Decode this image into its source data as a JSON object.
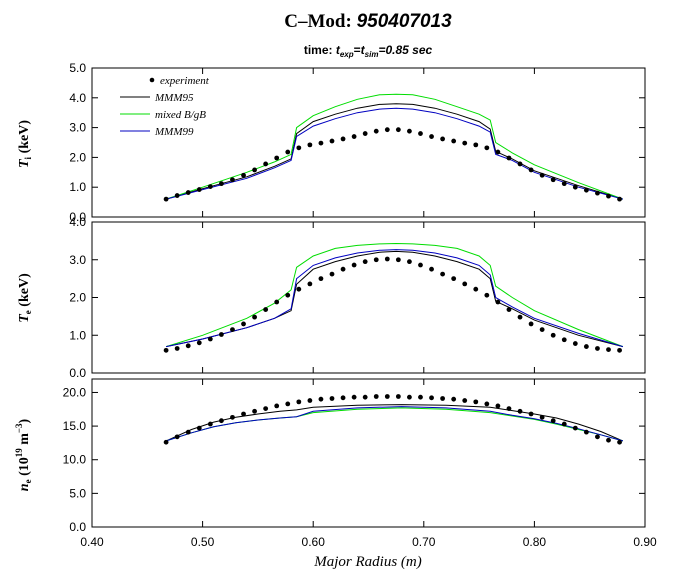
{
  "header": {
    "title_prefix": "C–Mod: ",
    "title_shot": "950407013",
    "subtitle_time": "time: ",
    "subtitle_t1": "t",
    "subtitle_sub1": "exp",
    "subtitle_eq1": "=",
    "subtitle_t2": "t",
    "subtitle_sub2": "sim",
    "subtitle_value": "=0.85 sec"
  },
  "chart_data": [
    {
      "type": "line",
      "panel": "ion-temperature",
      "ylabel_main": "T",
      "ylabel_sub": "i",
      "ylabel_unit": " (keV)",
      "ylim": [
        0,
        5
      ],
      "yticks": [
        "0.0",
        "1.0",
        "2.0",
        "3.0",
        "4.0",
        "5.0"
      ],
      "xlim": [
        0.4,
        0.9
      ],
      "legend": [
        "experiment",
        "MMM95",
        "mixed B/gB",
        "MMM99"
      ],
      "series": [
        {
          "name": "MMM95",
          "color": "#000000",
          "x": [
            0.467,
            0.5,
            0.54,
            0.565,
            0.58,
            0.585,
            0.6,
            0.62,
            0.64,
            0.66,
            0.675,
            0.69,
            0.71,
            0.73,
            0.75,
            0.76,
            0.765,
            0.78,
            0.8,
            0.84,
            0.88
          ],
          "values": [
            0.6,
            0.95,
            1.35,
            1.7,
            1.95,
            2.8,
            3.2,
            3.45,
            3.65,
            3.78,
            3.8,
            3.78,
            3.65,
            3.45,
            3.2,
            2.95,
            2.2,
            1.95,
            1.55,
            1.05,
            0.6
          ]
        },
        {
          "name": "mixed B/gB",
          "color": "#00dd00",
          "x": [
            0.467,
            0.5,
            0.54,
            0.565,
            0.58,
            0.585,
            0.6,
            0.62,
            0.64,
            0.66,
            0.675,
            0.69,
            0.71,
            0.73,
            0.75,
            0.76,
            0.765,
            0.78,
            0.8,
            0.84,
            0.88
          ],
          "values": [
            0.6,
            1.0,
            1.5,
            1.85,
            2.1,
            3.0,
            3.4,
            3.7,
            3.95,
            4.1,
            4.12,
            4.1,
            3.95,
            3.7,
            3.45,
            3.25,
            2.5,
            2.15,
            1.75,
            1.15,
            0.6
          ]
        },
        {
          "name": "MMM99",
          "color": "#0000c0",
          "x": [
            0.467,
            0.5,
            0.54,
            0.565,
            0.58,
            0.585,
            0.6,
            0.62,
            0.64,
            0.66,
            0.675,
            0.69,
            0.71,
            0.73,
            0.75,
            0.76,
            0.765,
            0.78,
            0.8,
            0.84,
            0.88
          ],
          "values": [
            0.6,
            0.92,
            1.3,
            1.65,
            1.9,
            2.7,
            3.05,
            3.3,
            3.5,
            3.62,
            3.65,
            3.62,
            3.5,
            3.3,
            3.05,
            2.85,
            2.1,
            1.9,
            1.5,
            1.0,
            0.6
          ]
        },
        {
          "name": "experiment",
          "color": "#000000",
          "x": [
            0.467,
            0.477,
            0.487,
            0.497,
            0.507,
            0.517,
            0.527,
            0.537,
            0.547,
            0.557,
            0.567,
            0.577,
            0.587,
            0.597,
            0.607,
            0.617,
            0.627,
            0.637,
            0.647,
            0.657,
            0.667,
            0.677,
            0.687,
            0.697,
            0.707,
            0.717,
            0.727,
            0.737,
            0.747,
            0.757,
            0.767,
            0.777,
            0.787,
            0.797,
            0.807,
            0.817,
            0.827,
            0.837,
            0.847,
            0.857,
            0.867,
            0.877
          ],
          "values": [
            0.6,
            0.72,
            0.82,
            0.92,
            1.02,
            1.12,
            1.25,
            1.4,
            1.58,
            1.78,
            1.98,
            2.18,
            2.32,
            2.42,
            2.48,
            2.55,
            2.62,
            2.7,
            2.8,
            2.88,
            2.93,
            2.93,
            2.88,
            2.8,
            2.7,
            2.62,
            2.55,
            2.48,
            2.42,
            2.32,
            2.18,
            1.98,
            1.78,
            1.58,
            1.4,
            1.25,
            1.12,
            1.0,
            0.9,
            0.8,
            0.7,
            0.6
          ]
        }
      ]
    },
    {
      "type": "line",
      "panel": "electron-temperature",
      "ylabel_main": "T",
      "ylabel_sub": "e",
      "ylabel_unit": " (keV)",
      "ylim": [
        0,
        4
      ],
      "yticks": [
        "0.0",
        "1.0",
        "2.0",
        "3.0",
        "4.0"
      ],
      "xlim": [
        0.4,
        0.9
      ],
      "series": [
        {
          "name": "MMM95",
          "color": "#000000",
          "x": [
            0.467,
            0.5,
            0.54,
            0.565,
            0.58,
            0.585,
            0.6,
            0.62,
            0.64,
            0.66,
            0.675,
            0.69,
            0.71,
            0.73,
            0.75,
            0.76,
            0.765,
            0.78,
            0.8,
            0.84,
            0.88
          ],
          "values": [
            0.7,
            0.9,
            1.2,
            1.45,
            1.65,
            2.35,
            2.75,
            2.95,
            3.1,
            3.2,
            3.22,
            3.2,
            3.1,
            2.95,
            2.75,
            2.5,
            1.9,
            1.7,
            1.4,
            1.0,
            0.7
          ]
        },
        {
          "name": "mixed B/gB",
          "color": "#00dd00",
          "x": [
            0.467,
            0.5,
            0.54,
            0.565,
            0.58,
            0.585,
            0.6,
            0.62,
            0.64,
            0.66,
            0.675,
            0.69,
            0.71,
            0.73,
            0.75,
            0.76,
            0.765,
            0.78,
            0.8,
            0.84,
            0.88
          ],
          "values": [
            0.7,
            1.0,
            1.45,
            1.85,
            2.2,
            2.8,
            3.1,
            3.3,
            3.38,
            3.42,
            3.43,
            3.42,
            3.38,
            3.3,
            3.1,
            2.85,
            2.3,
            2.0,
            1.65,
            1.15,
            0.7
          ]
        },
        {
          "name": "MMM99",
          "color": "#0000c0",
          "x": [
            0.467,
            0.5,
            0.54,
            0.565,
            0.58,
            0.585,
            0.6,
            0.62,
            0.64,
            0.66,
            0.675,
            0.69,
            0.71,
            0.73,
            0.75,
            0.76,
            0.765,
            0.78,
            0.8,
            0.84,
            0.88
          ],
          "values": [
            0.7,
            0.9,
            1.2,
            1.45,
            1.7,
            2.5,
            2.85,
            3.05,
            3.18,
            3.25,
            3.27,
            3.25,
            3.18,
            3.05,
            2.85,
            2.6,
            2.0,
            1.75,
            1.45,
            1.05,
            0.7
          ]
        },
        {
          "name": "experiment",
          "color": "#000000",
          "x": [
            0.467,
            0.477,
            0.487,
            0.497,
            0.507,
            0.517,
            0.527,
            0.537,
            0.547,
            0.557,
            0.567,
            0.577,
            0.587,
            0.597,
            0.607,
            0.617,
            0.627,
            0.637,
            0.647,
            0.657,
            0.667,
            0.677,
            0.687,
            0.697,
            0.707,
            0.717,
            0.727,
            0.737,
            0.747,
            0.757,
            0.767,
            0.777,
            0.787,
            0.797,
            0.807,
            0.817,
            0.827,
            0.837,
            0.847,
            0.857,
            0.867,
            0.877
          ],
          "values": [
            0.6,
            0.65,
            0.72,
            0.8,
            0.9,
            1.02,
            1.15,
            1.3,
            1.48,
            1.68,
            1.88,
            2.06,
            2.22,
            2.36,
            2.5,
            2.62,
            2.75,
            2.86,
            2.95,
            3.0,
            3.02,
            3.0,
            2.95,
            2.86,
            2.75,
            2.62,
            2.5,
            2.36,
            2.22,
            2.06,
            1.88,
            1.68,
            1.48,
            1.3,
            1.15,
            1.0,
            0.88,
            0.78,
            0.7,
            0.65,
            0.62,
            0.6
          ]
        }
      ]
    },
    {
      "type": "line",
      "panel": "electron-density",
      "ylabel_main": "n",
      "ylabel_sub": "e",
      "ylabel_pre": " (10",
      "ylabel_exp": "19",
      "ylabel_mid": " m",
      "ylabel_exp2": "−3",
      "ylabel_post": ")",
      "ylim": [
        0,
        22
      ],
      "yticks": [
        "0.0",
        "5.0",
        "10.0",
        "15.0",
        "20.0"
      ],
      "ytick_values": [
        0,
        5,
        10,
        15,
        20
      ],
      "xlim": [
        0.4,
        0.9
      ],
      "xlabel": "Major Radius (m)",
      "xticks": [
        "0.40",
        "0.50",
        "0.60",
        "0.70",
        "0.80",
        "0.90"
      ],
      "xtick_values": [
        0.4,
        0.5,
        0.6,
        0.7,
        0.8,
        0.9
      ],
      "series": [
        {
          "name": "MMM95",
          "color": "#000000",
          "x": [
            0.467,
            0.49,
            0.51,
            0.53,
            0.55,
            0.57,
            0.585,
            0.6,
            0.64,
            0.68,
            0.72,
            0.76,
            0.78,
            0.8,
            0.82,
            0.84,
            0.86,
            0.88
          ],
          "values": [
            12.8,
            14.5,
            15.6,
            16.3,
            16.8,
            17.2,
            17.4,
            17.8,
            18.1,
            18.2,
            18.1,
            17.8,
            17.3,
            16.8,
            16.2,
            15.3,
            14.2,
            12.8
          ]
        },
        {
          "name": "mixed B/gB",
          "color": "#00dd00",
          "x": [
            0.467,
            0.49,
            0.51,
            0.53,
            0.55,
            0.57,
            0.585,
            0.6,
            0.64,
            0.68,
            0.72,
            0.76,
            0.78,
            0.8,
            0.82,
            0.84,
            0.86,
            0.88
          ],
          "values": [
            12.8,
            14.0,
            14.9,
            15.5,
            15.9,
            16.2,
            16.4,
            17.0,
            17.5,
            17.7,
            17.5,
            17.0,
            16.5,
            16.0,
            15.3,
            14.5,
            13.7,
            12.8
          ]
        },
        {
          "name": "MMM99",
          "color": "#0000c0",
          "x": [
            0.467,
            0.49,
            0.51,
            0.53,
            0.55,
            0.57,
            0.585,
            0.6,
            0.64,
            0.68,
            0.72,
            0.76,
            0.78,
            0.8,
            0.82,
            0.84,
            0.86,
            0.88
          ],
          "values": [
            12.8,
            14.0,
            14.9,
            15.5,
            15.9,
            16.2,
            16.4,
            17.2,
            17.7,
            17.9,
            17.7,
            17.2,
            16.6,
            16.1,
            15.4,
            14.6,
            13.7,
            12.8
          ]
        },
        {
          "name": "experiment",
          "color": "#000000",
          "x": [
            0.467,
            0.477,
            0.487,
            0.497,
            0.507,
            0.517,
            0.527,
            0.537,
            0.547,
            0.557,
            0.567,
            0.577,
            0.587,
            0.597,
            0.607,
            0.617,
            0.627,
            0.637,
            0.647,
            0.657,
            0.667,
            0.677,
            0.687,
            0.697,
            0.707,
            0.717,
            0.727,
            0.737,
            0.747,
            0.757,
            0.767,
            0.777,
            0.787,
            0.797,
            0.807,
            0.817,
            0.827,
            0.837,
            0.847,
            0.857,
            0.867,
            0.877
          ],
          "values": [
            12.6,
            13.4,
            14.1,
            14.7,
            15.3,
            15.8,
            16.3,
            16.8,
            17.2,
            17.6,
            18.0,
            18.3,
            18.6,
            18.8,
            19.0,
            19.1,
            19.2,
            19.3,
            19.3,
            19.4,
            19.4,
            19.4,
            19.3,
            19.3,
            19.2,
            19.1,
            19.0,
            18.8,
            18.6,
            18.3,
            18.0,
            17.6,
            17.2,
            16.8,
            16.3,
            15.8,
            15.3,
            14.7,
            14.1,
            13.4,
            12.9,
            12.6
          ]
        }
      ]
    }
  ]
}
